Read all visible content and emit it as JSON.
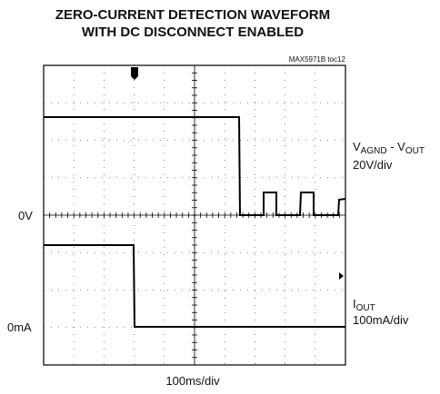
{
  "title": [
    "ZERO-CURRENT DETECTION WAVEFORM",
    "WITH DC DISCONNECT ENABLED"
  ],
  "figure_id": "MAX5971B toc12",
  "trace1": {
    "label": [
      "V",
      "AGND",
      " - V",
      "OUT"
    ],
    "scale": "20V/div",
    "zero": "0V"
  },
  "trace2": {
    "label": [
      "I",
      "OUT"
    ],
    "scale": "100mA/div",
    "zero": "0mA"
  },
  "time_scale": "100ms/div"
}
